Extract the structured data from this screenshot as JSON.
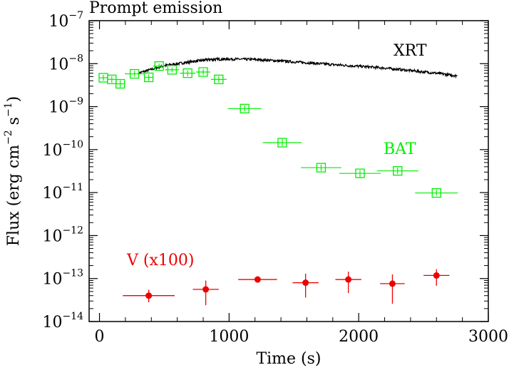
{
  "chart_data": {
    "type": "scatter",
    "title": "Prompt emission",
    "xlabel": "Time (s)",
    "ylabel": {
      "prefix": "Flux (erg cm",
      "cm_exp": "−2",
      "mid": " s",
      "s_exp": "−1",
      "suffix": ")"
    },
    "xlim": [
      -80,
      3000
    ],
    "ylim_log10": [
      -14,
      -7
    ],
    "xticks": [
      {
        "value": 0,
        "label": "0"
      },
      {
        "value": 1000,
        "label": "1000"
      },
      {
        "value": 2000,
        "label": "2000"
      },
      {
        "value": 3000,
        "label": "3000"
      }
    ],
    "yticks": [
      {
        "exp": -14,
        "base": "10",
        "power": "−14"
      },
      {
        "exp": -13,
        "base": "10",
        "power": "−13"
      },
      {
        "exp": -12,
        "base": "10",
        "power": "−12"
      },
      {
        "exp": -11,
        "base": "10",
        "power": "−11"
      },
      {
        "exp": -10,
        "base": "10",
        "power": "−10"
      },
      {
        "exp": -9,
        "base": "10",
        "power": "−9"
      },
      {
        "exp": -8,
        "base": "10",
        "power": "−8"
      },
      {
        "exp": -7,
        "base": "10",
        "power": "−7"
      }
    ],
    "series": [
      {
        "name": "XRT",
        "label": "XRT",
        "kind": "noisy-line",
        "color": "#000000",
        "x": [
          300,
          500,
          700,
          850,
          1000,
          1200,
          1400,
          1600,
          1800,
          2000,
          2200,
          2400,
          2600,
          2760
        ],
        "y": [
          6e-09,
          9e-09,
          1.1e-08,
          1.25e-08,
          1.28e-08,
          1.25e-08,
          1.15e-08,
          1.05e-08,
          9.5e-09,
          8.7e-09,
          7.9e-09,
          6.9e-09,
          6e-09,
          5.2e-09
        ],
        "noise": 0.06
      },
      {
        "name": "BAT",
        "label": "BAT",
        "kind": "open-square",
        "color": "#00ee00",
        "points": [
          {
            "x": 30,
            "xerr": 30,
            "y": 4.7e-09,
            "ylo": 4e-09,
            "yhi": 5.5e-09
          },
          {
            "x": 95,
            "xerr": 30,
            "y": 4.3e-09,
            "ylo": 3.6e-09,
            "yhi": 5.1e-09
          },
          {
            "x": 160,
            "xerr": 35,
            "y": 3.4e-09,
            "ylo": 2.8e-09,
            "yhi": 4.1e-09
          },
          {
            "x": 270,
            "xerr": 75,
            "y": 5.8e-09,
            "ylo": 5e-09,
            "yhi": 6.8e-09
          },
          {
            "x": 380,
            "xerr": 35,
            "y": 4.8e-09,
            "ylo": 4e-09,
            "yhi": 5.6e-09
          },
          {
            "x": 460,
            "xerr": 45,
            "y": 8.8e-09,
            "ylo": 7.8e-09,
            "yhi": 1e-08
          },
          {
            "x": 560,
            "xerr": 55,
            "y": 7.2e-09,
            "ylo": 6.3e-09,
            "yhi": 8.2e-09
          },
          {
            "x": 680,
            "xerr": 60,
            "y": 6e-09,
            "ylo": 5.1e-09,
            "yhi": 7e-09
          },
          {
            "x": 800,
            "xerr": 55,
            "y": 6.4e-09,
            "ylo": 5.5e-09,
            "yhi": 7.4e-09
          },
          {
            "x": 920,
            "xerr": 60,
            "y": 4.3e-09,
            "ylo": 3.6e-09,
            "yhi": 5.1e-09
          },
          {
            "x": 1120,
            "xerr": 130,
            "y": 9e-10,
            "ylo": 7.8e-10,
            "yhi": 1.05e-09
          },
          {
            "x": 1410,
            "xerr": 150,
            "y": 1.45e-10,
            "ylo": 1.2e-10,
            "yhi": 1.75e-10
          },
          {
            "x": 1710,
            "xerr": 155,
            "y": 3.8e-11,
            "ylo": 3.2e-11,
            "yhi": 4.5e-11
          },
          {
            "x": 2010,
            "xerr": 160,
            "y": 2.8e-11,
            "ylo": 2.3e-11,
            "yhi": 3.3e-11
          },
          {
            "x": 2300,
            "xerr": 160,
            "y": 3.2e-11,
            "ylo": 2.7e-11,
            "yhi": 3.8e-11
          },
          {
            "x": 2600,
            "xerr": 165,
            "y": 9.8e-12,
            "ylo": 8.5e-12,
            "yhi": 1.15e-11
          }
        ]
      },
      {
        "name": "V (x100)",
        "label": "V (x100)",
        "kind": "filled-circle",
        "color": "#ee0000",
        "points": [
          {
            "x": 380,
            "xerr": 200,
            "y": 4e-14,
            "ylo": 2.8e-14,
            "yhi": 5.5e-14
          },
          {
            "x": 820,
            "xerr": 100,
            "y": 5.6e-14,
            "ylo": 2.4e-14,
            "yhi": 9e-14
          },
          {
            "x": 1220,
            "xerr": 150,
            "y": 9.5e-14,
            "ylo": 8e-14,
            "yhi": 1.08e-13
          },
          {
            "x": 1590,
            "xerr": 100,
            "y": 8e-14,
            "ylo": 3.6e-14,
            "yhi": 1.3e-13
          },
          {
            "x": 1920,
            "xerr": 100,
            "y": 9.5e-14,
            "ylo": 4.6e-14,
            "yhi": 1.45e-13
          },
          {
            "x": 2260,
            "xerr": 95,
            "y": 7.6e-14,
            "ylo": 2.6e-14,
            "yhi": 1.25e-13
          },
          {
            "x": 2600,
            "xerr": 100,
            "y": 1.18e-13,
            "ylo": 6.8e-14,
            "yhi": 1.65e-13
          }
        ]
      }
    ]
  }
}
